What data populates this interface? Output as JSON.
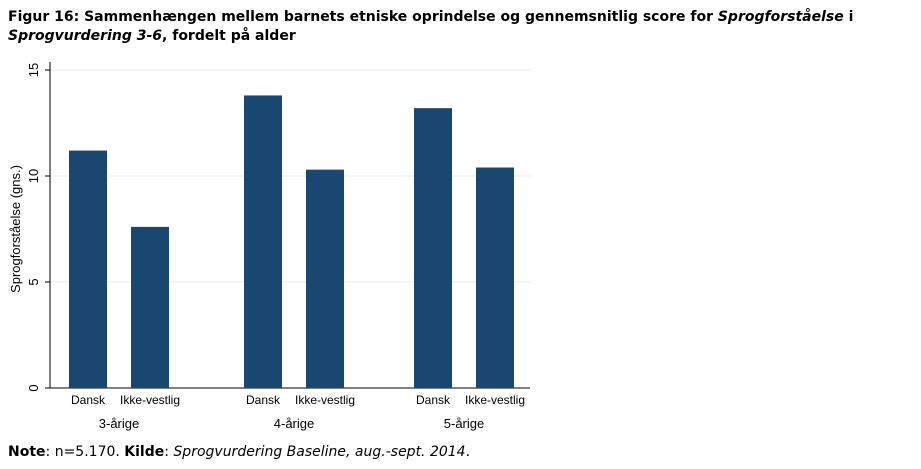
{
  "caption": {
    "prefix": "Figur 16: Sammenhængen mellem barnets etniske oprindelse og gennemsnitlig score for ",
    "italic1": "Sprogforståelse",
    "mid": " i ",
    "italic2": "Sprogvurdering 3-6",
    "suffix": ", fordelt på alder"
  },
  "note": {
    "label": "Note",
    "text": ": n=5.170. ",
    "source_label": "Kilde",
    "source_sep": ": ",
    "source_text": "Sprogvurdering Baseline, aug.-sept. 2014",
    "end": "."
  },
  "chart_data": {
    "type": "bar",
    "ylabel": "Sprogforståelse (gns.)",
    "ylim": [
      0,
      15
    ],
    "yticks": [
      0,
      5,
      10,
      15
    ],
    "grid": true,
    "bar_color": "#1a476f",
    "groups": [
      {
        "label": "3-årige",
        "bars": [
          {
            "label": "Dansk",
            "value": 11.2
          },
          {
            "label": "Ikke-vestlig",
            "value": 7.6
          }
        ]
      },
      {
        "label": "4-årige",
        "bars": [
          {
            "label": "Dansk",
            "value": 13.8
          },
          {
            "label": "Ikke-vestlig",
            "value": 10.3
          }
        ]
      },
      {
        "label": "5-årige",
        "bars": [
          {
            "label": "Dansk",
            "value": 13.2
          },
          {
            "label": "Ikke-vestlig",
            "value": 10.4
          }
        ]
      }
    ]
  }
}
